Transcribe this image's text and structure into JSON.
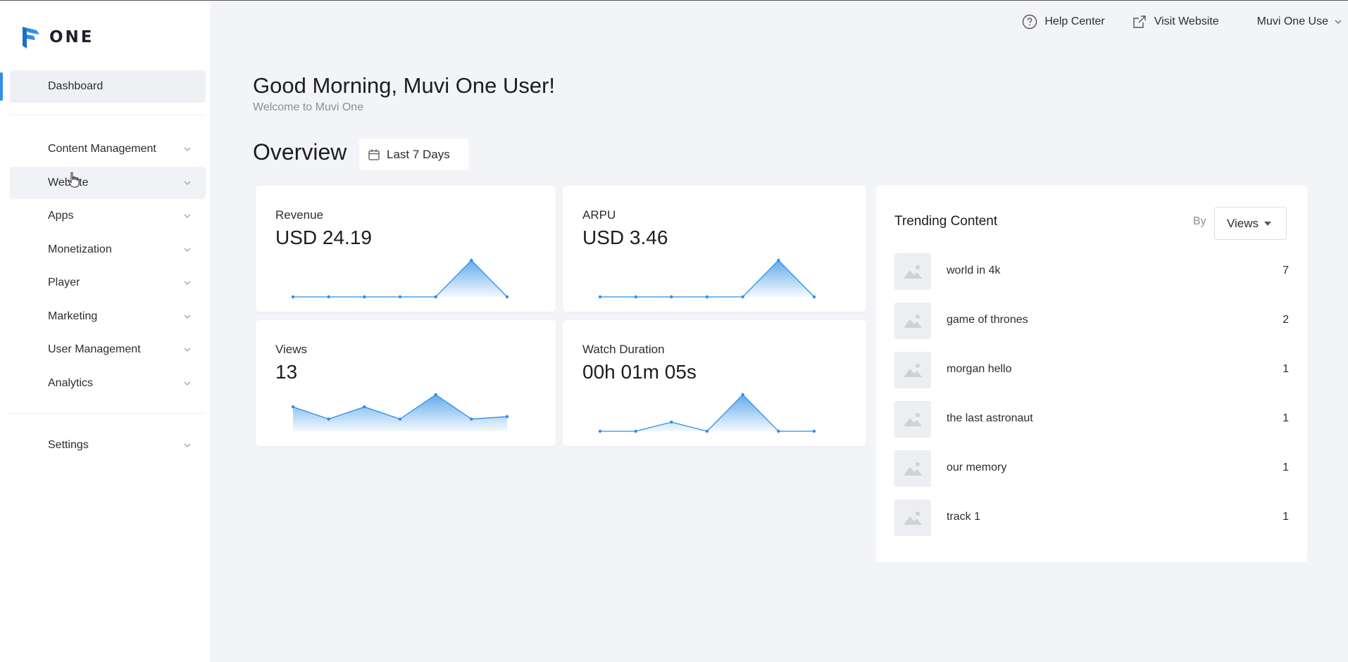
{
  "app": {
    "logo_text": "ONE"
  },
  "header": {
    "help_label": "Help Center",
    "visit_label": "Visit Website",
    "user_label": "Muvi One Use"
  },
  "sidebar": {
    "items": [
      {
        "label": "Dashboard"
      },
      {
        "label": "Content Management"
      },
      {
        "label": "Website"
      },
      {
        "label": "Apps"
      },
      {
        "label": "Monetization"
      },
      {
        "label": "Player"
      },
      {
        "label": "Marketing"
      },
      {
        "label": "User Management"
      },
      {
        "label": "Analytics"
      },
      {
        "label": "Settings"
      }
    ]
  },
  "main": {
    "greeting": "Good Morning, Muvi One User!",
    "welcome": "Welcome to Muvi One",
    "overview_title": "Overview",
    "date_range": "Last 7 Days"
  },
  "cards": [
    {
      "label": "Revenue",
      "value": "USD 24.19",
      "trend": [
        0,
        0,
        0,
        0,
        0,
        1,
        0
      ]
    },
    {
      "label": "ARPU",
      "value": "USD 3.46",
      "trend": [
        0,
        0,
        0,
        0,
        0,
        1,
        0
      ]
    },
    {
      "label": "Views",
      "value": "13",
      "trend": [
        2,
        1,
        2,
        1,
        3,
        1,
        1.2
      ]
    },
    {
      "label": "Watch Duration",
      "value": "00h 01m 05s",
      "trend": [
        0,
        0,
        0.25,
        0,
        1,
        0,
        0
      ]
    }
  ],
  "trending": {
    "title": "Trending Content",
    "by_label": "By",
    "sort_label": "Views",
    "items": [
      {
        "name": "world in 4k",
        "count": "7"
      },
      {
        "name": "game of thrones",
        "count": "2"
      },
      {
        "name": "morgan hello",
        "count": "1"
      },
      {
        "name": "the last astronaut",
        "count": "1"
      },
      {
        "name": "our memory",
        "count": "1"
      },
      {
        "name": "track 1",
        "count": "1"
      }
    ]
  },
  "colors": {
    "accent": "#2e8fe6",
    "sidebar_bg": "#ffffff",
    "main_bg": "#f3f4f7"
  }
}
